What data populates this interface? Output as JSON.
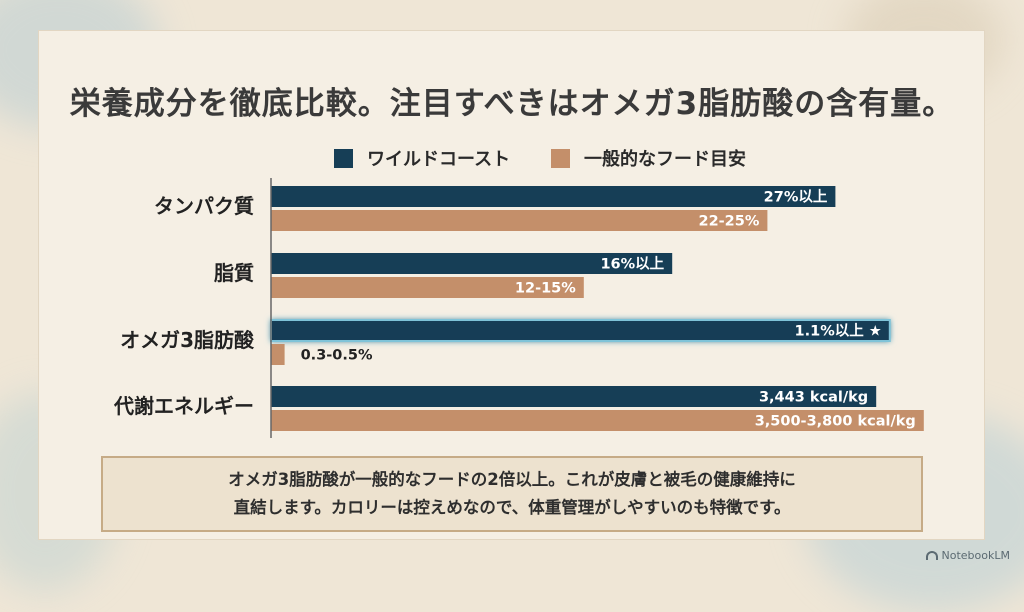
{
  "colors": {
    "wild": "#163e56",
    "general": "#c48f6a",
    "axis": "#666666"
  },
  "title": "栄養成分を徹底比較。注目すべきはオメガ3脂肪酸の含有量。",
  "legend": {
    "wild": "ワイルドコースト",
    "general": "一般的なフード目安"
  },
  "chart_data": {
    "type": "bar",
    "orientation": "horizontal",
    "categories": [
      "タンパク質",
      "脂質",
      "オメガ3脂肪酸",
      "代謝エネルギー"
    ],
    "series": [
      {
        "name": "ワイルドコースト",
        "labels": [
          "27%以上",
          "16%以上",
          "1.1%以上 ★",
          "3,443 kcal/kg"
        ]
      },
      {
        "name": "一般的なフード目安",
        "labels": [
          "22-25%",
          "12-15%",
          "0.3-0.5%",
          "3,500-3,800 kcal/kg"
        ]
      }
    ],
    "relative_lengths": [
      [
        0.83,
        0.73
      ],
      [
        0.59,
        0.46
      ],
      [
        0.91,
        0.02
      ],
      [
        0.89,
        0.96
      ]
    ],
    "highlight_category": "オメガ3脂肪酸",
    "grid": false,
    "legend_position": "top"
  },
  "caption": {
    "line1": "オメガ3脂肪酸が一般的なフードの2倍以上。これが皮膚と被毛の健康維持に",
    "line2": "直結します。カロリーは控えめなので、体重管理がしやすいのも特徴です。"
  },
  "brand": "NotebookLM"
}
